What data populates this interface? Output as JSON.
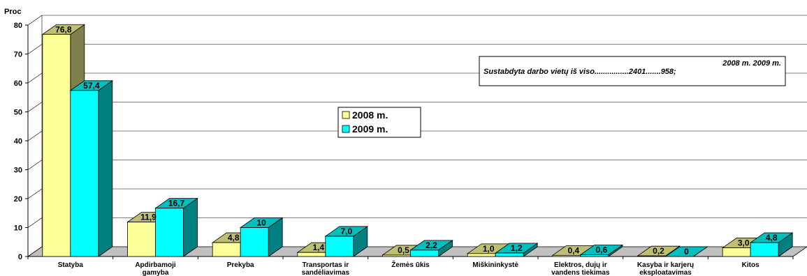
{
  "chart_data": {
    "type": "bar",
    "ylabel": "Proc",
    "ylim": [
      0,
      80
    ],
    "yticks": [
      "0",
      "10",
      "20",
      "30",
      "40",
      "50",
      "60",
      "70",
      "80"
    ],
    "grid": true,
    "legend_position": "center",
    "categories": [
      [
        "Statyba"
      ],
      [
        "Apdirbamoji",
        "gamyba"
      ],
      [
        "Prekyba"
      ],
      [
        "Transportas ir",
        "sandėliavimas"
      ],
      [
        "Žemės ūkis"
      ],
      [
        "Miškininkystė"
      ],
      [
        "Elektros, dujų ir",
        "vandens tiekimas"
      ],
      [
        "Kasyba ir karjerų",
        "eksploatavimas"
      ],
      [
        "Kitos"
      ]
    ],
    "series": [
      {
        "name": "2008 m.",
        "color": "#ffff99",
        "values": [
          76.8,
          11.9,
          4.8,
          1.4,
          0.5,
          1.0,
          0.4,
          0.2,
          3.0
        ],
        "labels": [
          "76,8",
          "11,9",
          "4,8",
          "1,4",
          "0,5",
          "1,0",
          "0,4",
          "0,2",
          "3,0"
        ]
      },
      {
        "name": "2009 m.",
        "color": "#00ffff",
        "values": [
          57.4,
          16.7,
          10,
          7.0,
          2.2,
          1.2,
          0.6,
          0,
          4.8
        ],
        "labels": [
          "57,4",
          "16,7",
          "10",
          "7,0",
          "2,2",
          "1,2",
          "0,6",
          "0",
          "4,8"
        ]
      }
    ],
    "note": {
      "header": "2008 m.  2009 m.",
      "text": "Sustabdyta darbo vietų iš viso................2401.......958;"
    }
  }
}
